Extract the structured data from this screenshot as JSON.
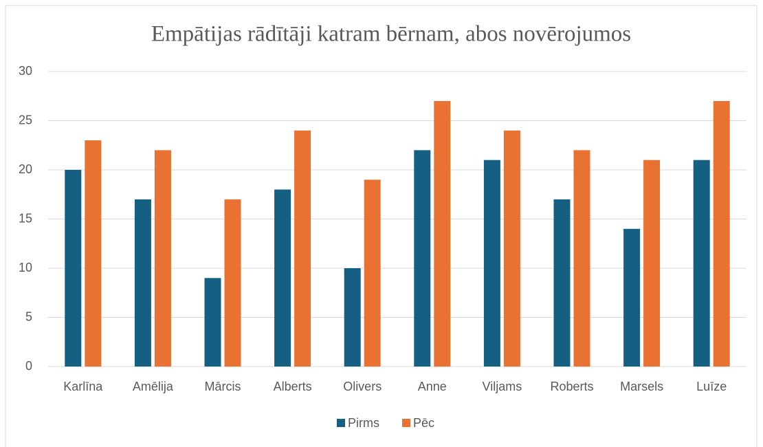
{
  "chart_data": {
    "type": "bar",
    "title": "Empātijas rādītāji katram bērnam, abos novērojumos",
    "categories": [
      "Karlīna",
      "Amēlija",
      "Mārcis",
      "Alberts",
      "Olivers",
      "Anne",
      "Viljams",
      "Roberts",
      "Marsels",
      "Luīze"
    ],
    "series": [
      {
        "name": "Pirms",
        "color": "#156082",
        "values": [
          20,
          17,
          9,
          18,
          10,
          22,
          21,
          17,
          14,
          21
        ]
      },
      {
        "name": "Pēc",
        "color": "#e97132",
        "values": [
          23,
          22,
          17,
          24,
          19,
          27,
          24,
          22,
          21,
          27
        ]
      }
    ],
    "ylim": [
      0,
      30
    ],
    "yticks": [
      0,
      5,
      10,
      15,
      20,
      25,
      30
    ],
    "grid": true,
    "legend": "bottom"
  }
}
